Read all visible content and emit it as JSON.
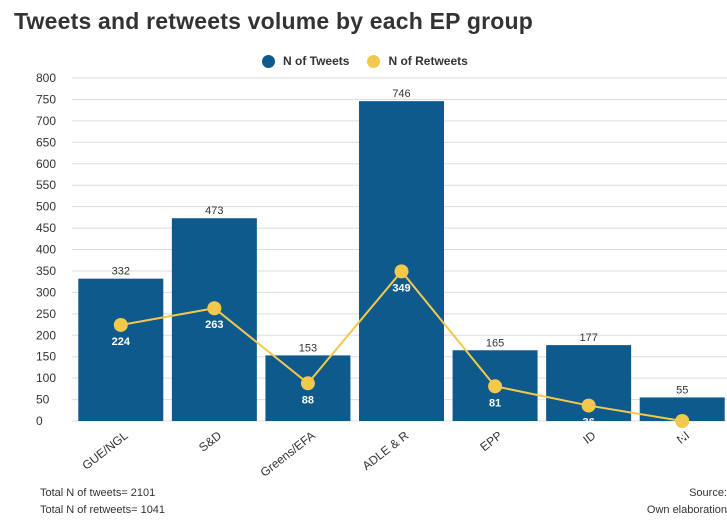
{
  "colors": {
    "tweets": "#0f5a8c",
    "retweets": "#f2c94c",
    "grid": "#dddddd",
    "text": "#333333"
  },
  "legend": {
    "tweets_label": "N of Tweets",
    "retweets_label": "N of Retweets"
  },
  "footer": {
    "total_tweets": "Total N of tweets= 2101",
    "total_retweets": "Total N of retweets= 1041",
    "source": "Source:",
    "elaboration": "Own elaboration"
  },
  "chart_data": {
    "type": "bar",
    "title": "Tweets and retweets volume by each EP group",
    "categories": [
      "GUE/NGL",
      "S&D",
      "Greens/EFA",
      "ADLE & R",
      "EPP",
      "ID",
      "NI"
    ],
    "series": [
      {
        "name": "N of Tweets",
        "type": "bar",
        "values": [
          332,
          473,
          153,
          746,
          165,
          177,
          55
        ]
      },
      {
        "name": "N of Retweets",
        "type": "line",
        "values": [
          224,
          263,
          88,
          349,
          81,
          36,
          0
        ]
      }
    ],
    "ylim": [
      0,
      800
    ],
    "yticks": [
      0,
      50,
      100,
      150,
      200,
      250,
      300,
      350,
      400,
      450,
      500,
      550,
      600,
      650,
      700,
      750,
      800
    ],
    "grid": true,
    "legend_position": "top-center"
  }
}
